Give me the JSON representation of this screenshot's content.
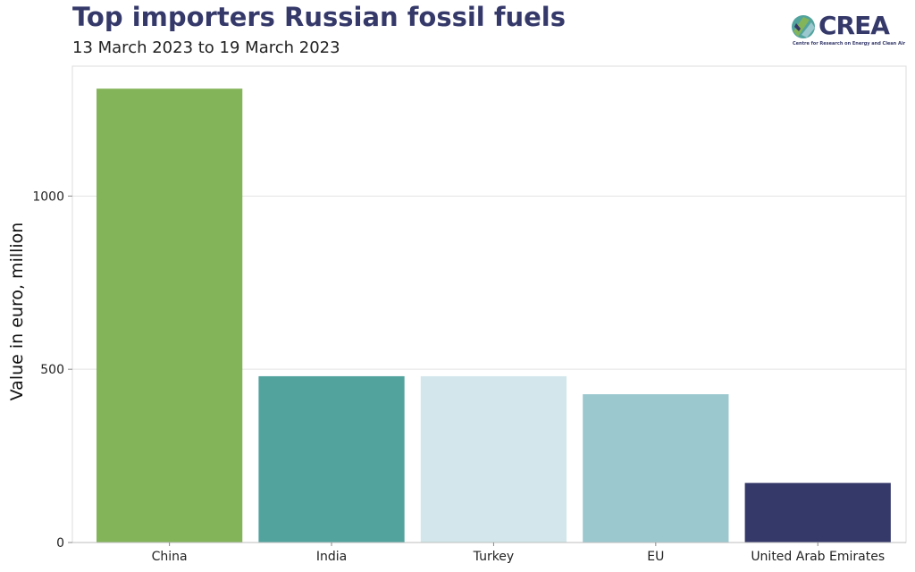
{
  "header": {
    "title": "Top importers Russian fossil fuels",
    "subtitle": "13 March 2023 to 19 March 2023"
  },
  "logo": {
    "word": "CREA",
    "tagline": "Centre for Research on Energy and Clean Air",
    "colors": {
      "primary": "#35396a",
      "green": "#84b459",
      "teal": "#52a39e",
      "light": "#9bc8cf"
    }
  },
  "chart_data": {
    "type": "bar",
    "title": "Top importers Russian fossil fuels",
    "subtitle": "13 March 2023 to 19 March 2023",
    "xlabel": "",
    "ylabel": "Value in euro, million",
    "categories": [
      "China",
      "India",
      "Turkey",
      "EU",
      "United Arab Emirates"
    ],
    "values": [
      1310,
      480,
      480,
      428,
      172
    ],
    "colors": [
      "#84b459",
      "#52a39e",
      "#d2e6eb",
      "#9bc8cf",
      "#35396a"
    ],
    "ylim": [
      0,
      1375
    ],
    "yticks": [
      0,
      500,
      1000
    ],
    "grid": true,
    "legend": "none"
  }
}
